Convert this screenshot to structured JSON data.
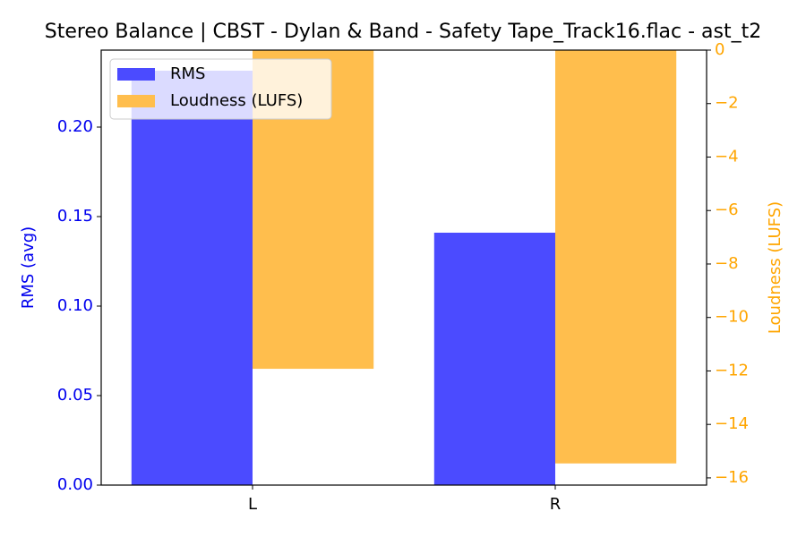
{
  "chart_data": {
    "type": "bar",
    "title": "Stereo Balance | CBST - Dylan & Band - Safety Tape_Track16.flac - ast_t2",
    "categories": [
      "L",
      "R"
    ],
    "ylabel": "RMS (avg)",
    "y2label": "Loudness (LUFS)",
    "ylim": [
      0,
      0.243
    ],
    "yticks": [
      {
        "value": 0,
        "label": "0.00"
      },
      {
        "value": 0.05,
        "label": "0.05"
      },
      {
        "value": 0.1,
        "label": "0.10"
      },
      {
        "value": 0.15,
        "label": "0.15"
      },
      {
        "value": 0.2,
        "label": "0.20"
      }
    ],
    "y2lim": [
      -16.27,
      0
    ],
    "y2ticks": [
      0,
      {
        "value": -2,
        "label": "−2"
      },
      {
        "value": -4,
        "label": "−4"
      },
      {
        "value": -6,
        "label": "−6"
      },
      {
        "value": -8,
        "label": "−8"
      },
      {
        "value": -10,
        "label": "−10"
      },
      {
        "value": -12,
        "label": "−12"
      },
      {
        "value": -14,
        "label": "−14"
      },
      {
        "value": -16,
        "label": "−16"
      }
    ],
    "series": [
      {
        "name": "RMS",
        "color": "#4b4bff",
        "values": [
          0.2315,
          0.141
        ]
      },
      {
        "name": "Loudness (LUFS)",
        "color": "#ffbe4d",
        "axis": "y2",
        "values": [
          -11.92,
          -15.46
        ]
      }
    ],
    "legend": "upper left",
    "ycolor": "#0000ee",
    "y2color": "#ffa500"
  }
}
